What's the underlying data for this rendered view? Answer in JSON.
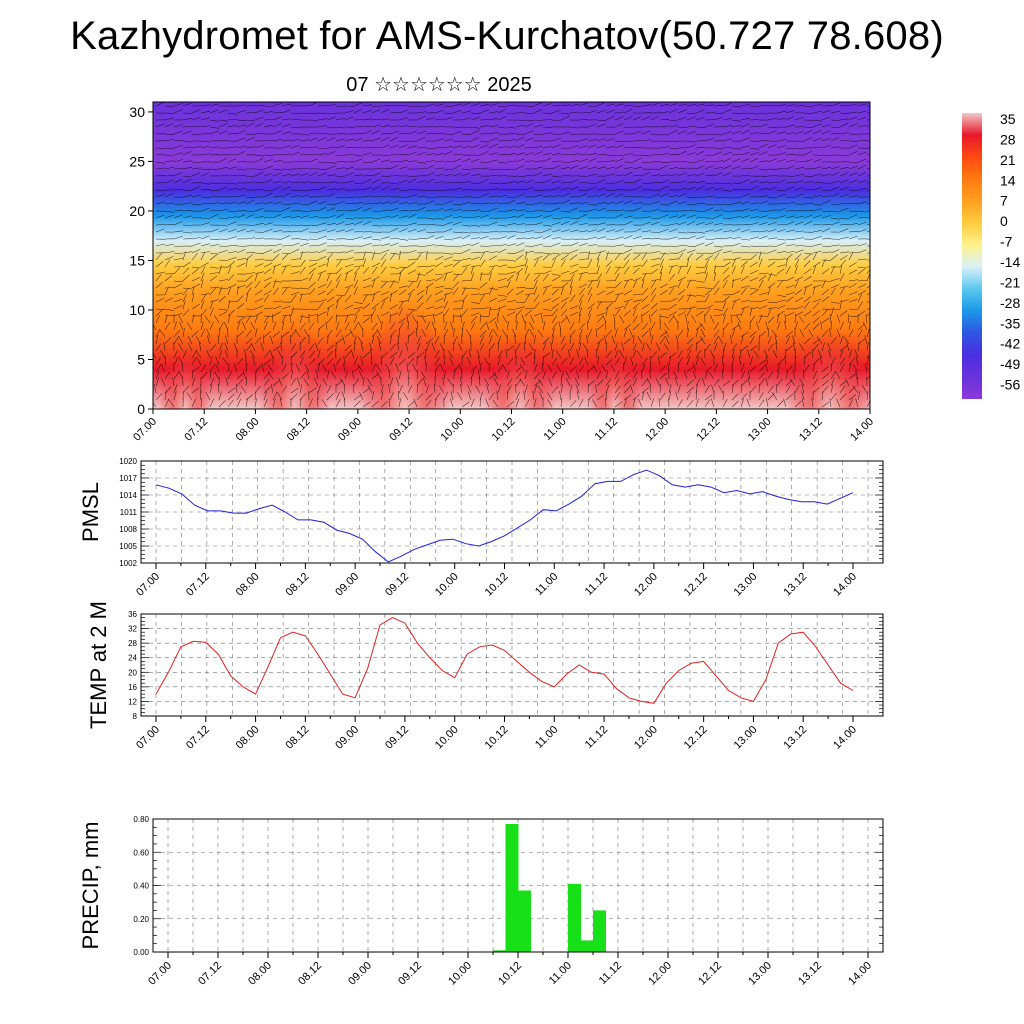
{
  "title": "Kazhydromet for AMS-Kurchatov(50.727 78.608)",
  "subtitle": "07 ☆☆☆☆☆☆ 2025",
  "chart_data": [
    {
      "type": "heatmap",
      "name": "temperature-wind-cross-section",
      "x_ticks": [
        "07.00",
        "07.12",
        "08.00",
        "08.12",
        "09.00",
        "09.12",
        "10.00",
        "10.12",
        "11.00",
        "11.12",
        "12.00",
        "12.12",
        "13.00",
        "13.12",
        "14.00"
      ],
      "ylim": [
        0,
        31
      ],
      "y_ticks": [
        0,
        5,
        10,
        15,
        20,
        25,
        30
      ],
      "colorbar": {
        "labels": [
          "35",
          "28",
          "21",
          "14",
          "7",
          "0",
          "-7",
          "-14",
          "-21",
          "-28",
          "-35",
          "-42",
          "-49",
          "-56"
        ],
        "colors": [
          "#f2c8c8",
          "#e8182a",
          "#ff4a12",
          "#ff7a10",
          "#ffa020",
          "#ffcc40",
          "#fff28c",
          "#d8f0f8",
          "#5ac8f0",
          "#1a98e8",
          "#2f56e2",
          "#4a2fe0",
          "#6a32dc",
          "#8a3ad8"
        ]
      },
      "temp_by_level": [
        {
          "z": 0,
          "t": 28
        },
        {
          "z": 4,
          "t": 24
        },
        {
          "z": 8,
          "t": 12
        },
        {
          "z": 12,
          "t": 4
        },
        {
          "z": 14.5,
          "t": -6
        },
        {
          "z": 17,
          "t": -20
        },
        {
          "z": 19.5,
          "t": -34
        },
        {
          "z": 22,
          "t": -48
        },
        {
          "z": 25,
          "t": -58
        },
        {
          "z": 31,
          "t": -54
        }
      ]
    },
    {
      "type": "line",
      "name": "PMSL",
      "ylabel": "PMSL",
      "ylim": [
        1002,
        1020
      ],
      "y_ticks": [
        1002,
        1005,
        1008,
        1011,
        1014,
        1017,
        1020
      ],
      "x_ticks": [
        "07.00",
        "07.12",
        "08.00",
        "08.12",
        "09.00",
        "09.12",
        "10.00",
        "10.12",
        "11.00",
        "11.12",
        "12.00",
        "12.12",
        "13.00",
        "13.12",
        "14.00"
      ],
      "color": "#1f1fd6",
      "series": [
        {
          "values": [
            1015.8,
            1015.2,
            1014.2,
            1012.2,
            1011.2,
            1011.2,
            1010.8,
            1010.8,
            1011.6,
            1012.2,
            1011.0,
            1009.6,
            1009.6,
            1009.2,
            1007.8,
            1007.2,
            1006.2,
            1004.0,
            1002.2,
            1003.2,
            1004.4,
            1005.2,
            1006.0,
            1006.2,
            1005.4,
            1005.0,
            1005.8,
            1006.8,
            1008.2,
            1009.6,
            1011.4,
            1011.2,
            1012.4,
            1013.8,
            1016.0,
            1016.4,
            1016.4,
            1017.6,
            1018.4,
            1017.4,
            1015.8,
            1015.4,
            1015.8,
            1015.4,
            1014.4,
            1014.8,
            1014.2,
            1014.6,
            1013.8,
            1013.2,
            1012.8,
            1012.8,
            1012.4,
            1013.4,
            1014.4
          ]
        }
      ]
    },
    {
      "type": "line",
      "name": "TEMP at 2 M",
      "ylabel": "TEMP at 2 M",
      "ylim": [
        8,
        36
      ],
      "y_ticks": [
        8,
        12,
        16,
        20,
        24,
        28,
        32,
        36
      ],
      "x_ticks": [
        "07.00",
        "07.12",
        "08.00",
        "08.12",
        "09.00",
        "09.12",
        "10.00",
        "10.12",
        "11.00",
        "11.12",
        "12.00",
        "12.12",
        "13.00",
        "13.12",
        "14.00"
      ],
      "color": "#e02020",
      "series": [
        {
          "values": [
            14,
            20,
            27,
            28.5,
            28.2,
            25,
            19,
            16,
            14,
            21.5,
            29.5,
            31,
            30,
            25,
            19.5,
            14,
            13,
            21,
            33,
            35,
            33.5,
            28,
            24,
            20.5,
            18.5,
            25,
            27,
            27.5,
            26,
            23,
            20,
            17.5,
            16,
            19.5,
            22,
            20,
            19.5,
            15.5,
            13,
            12,
            11.5,
            17,
            20.5,
            22.5,
            23,
            19,
            15,
            13,
            12,
            18,
            28,
            30.5,
            31,
            27,
            22,
            17,
            15
          ]
        }
      ]
    },
    {
      "type": "bar",
      "name": "PRECIP, mm",
      "ylabel": "PRECIP, mm",
      "ylim": [
        0,
        0.8
      ],
      "y_ticks": [
        "0.00",
        "0.20",
        "0.40",
        "0.60",
        "0.80"
      ],
      "x_ticks": [
        "07.00",
        "07.12",
        "08.00",
        "08.12",
        "09.00",
        "09.12",
        "10.00",
        "10.12",
        "11.00",
        "11.12",
        "12.00",
        "12.12",
        "13.00",
        "13.12",
        "14.00"
      ],
      "color": "#18e018",
      "bars": [
        {
          "hour": 78,
          "value": 0.01
        },
        {
          "hour": 81,
          "value": 0.77
        },
        {
          "hour": 84,
          "value": 0.37
        },
        {
          "hour": 96,
          "value": 0.41
        },
        {
          "hour": 99,
          "value": 0.07
        },
        {
          "hour": 102,
          "value": 0.25
        }
      ]
    }
  ]
}
